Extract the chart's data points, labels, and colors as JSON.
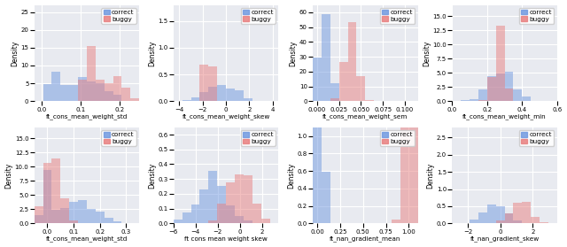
{
  "panels": [
    {
      "row": 0,
      "col": 0,
      "xlabel": "ft_cons_mean_weight_std",
      "correct_locs": [
        0.03,
        0.09,
        0.15
      ],
      "correct_scales": [
        0.012,
        0.03,
        0.025
      ],
      "correct_weights": [
        0.3,
        0.4,
        0.3
      ],
      "correct_n": 500,
      "buggy_locs": [
        0.125,
        0.19
      ],
      "buggy_scales": [
        0.015,
        0.02
      ],
      "buggy_weights": [
        0.6,
        0.4
      ],
      "buggy_n": 500,
      "ylim": [
        0,
        27
      ],
      "xlim": [
        -0.02,
        0.25
      ]
    },
    {
      "row": 0,
      "col": 1,
      "xlabel": "ft_cons_mean_weight_skew",
      "correct_locs": [
        -0.5
      ],
      "correct_scales": [
        1.3
      ],
      "correct_weights": [
        1.0
      ],
      "correct_n": 500,
      "buggy_locs": [
        -1.5
      ],
      "buggy_scales": [
        0.2
      ],
      "buggy_weights": [
        1.0
      ],
      "buggy_n": 500,
      "ylim": [
        0,
        1.8
      ],
      "xlim": [
        -4.5,
        4.5
      ]
    },
    {
      "row": 0,
      "col": 2,
      "xlabel": "ft_cons_mean_weight_sem",
      "correct_locs": [
        0.008
      ],
      "correct_scales": [
        0.006
      ],
      "correct_weights": [
        1.0
      ],
      "correct_n": 500,
      "buggy_locs": [
        0.038
      ],
      "buggy_scales": [
        0.007
      ],
      "buggy_weights": [
        1.0
      ],
      "buggy_n": 500,
      "ylim": [
        0,
        65
      ],
      "xlim": [
        -0.005,
        0.115
      ]
    },
    {
      "row": 0,
      "col": 3,
      "xlabel": "ft_cons_mean_weight_min",
      "correct_locs": [
        0.28
      ],
      "correct_scales": [
        0.07
      ],
      "correct_weights": [
        1.0
      ],
      "correct_n": 500,
      "buggy_locs": [
        0.27
      ],
      "buggy_scales": [
        0.028
      ],
      "buggy_weights": [
        1.0
      ],
      "buggy_n": 500,
      "ylim": [
        0,
        17
      ],
      "xlim": [
        0.0,
        0.6
      ]
    },
    {
      "row": 1,
      "col": 0,
      "xlabel": "ft_cons_mean_weight_std",
      "correct_locs": [
        0.0,
        0.13
      ],
      "correct_scales": [
        0.015,
        0.05
      ],
      "correct_weights": [
        0.4,
        0.6
      ],
      "correct_n": 500,
      "buggy_locs": [
        0.02
      ],
      "buggy_scales": [
        0.03
      ],
      "buggy_weights": [
        1.0
      ],
      "buggy_n": 500,
      "ylim": [
        0,
        17
      ],
      "xlim": [
        -0.05,
        0.35
      ]
    },
    {
      "row": 1,
      "col": 1,
      "xlabel": "ft cons mean weight skew",
      "correct_locs": [
        -2.5
      ],
      "correct_scales": [
        1.4
      ],
      "correct_weights": [
        1.0
      ],
      "correct_n": 500,
      "buggy_locs": [
        -0.5,
        0.5
      ],
      "buggy_scales": [
        1.0,
        0.9
      ],
      "buggy_weights": [
        0.5,
        0.5
      ],
      "buggy_n": 500,
      "ylim": [
        0,
        0.65
      ],
      "xlim": [
        -6.0,
        3.5
      ]
    },
    {
      "row": 1,
      "col": 2,
      "xlabel": "ft_nan_gradient_mean",
      "correct_locs": [
        0.0
      ],
      "correct_scales": [
        0.03
      ],
      "correct_weights": [
        1.0
      ],
      "correct_n": 500,
      "buggy_locs": [
        1.0
      ],
      "buggy_scales": [
        0.03
      ],
      "buggy_weights": [
        1.0
      ],
      "buggy_n": 500,
      "ylim": [
        0,
        1.1
      ],
      "xlim": [
        -0.05,
        1.1
      ]
    },
    {
      "row": 1,
      "col": 3,
      "xlabel": "ft_nan_gradient_skew",
      "correct_locs": [
        -0.3
      ],
      "correct_scales": [
        0.7
      ],
      "correct_weights": [
        1.0
      ],
      "correct_n": 500,
      "buggy_locs": [
        1.2
      ],
      "buggy_scales": [
        0.6
      ],
      "buggy_weights": [
        1.0
      ],
      "buggy_n": 500,
      "ylim": [
        0,
        2.8
      ],
      "xlim": [
        -3.0,
        3.5
      ]
    }
  ],
  "correct_color": "#7099e0",
  "buggy_color": "#e88080",
  "correct_kde_color": "#3060c0",
  "buggy_kde_color": "#c02030",
  "bg_color": "#e8eaf0",
  "correct_alpha": 0.5,
  "buggy_alpha": 0.5
}
